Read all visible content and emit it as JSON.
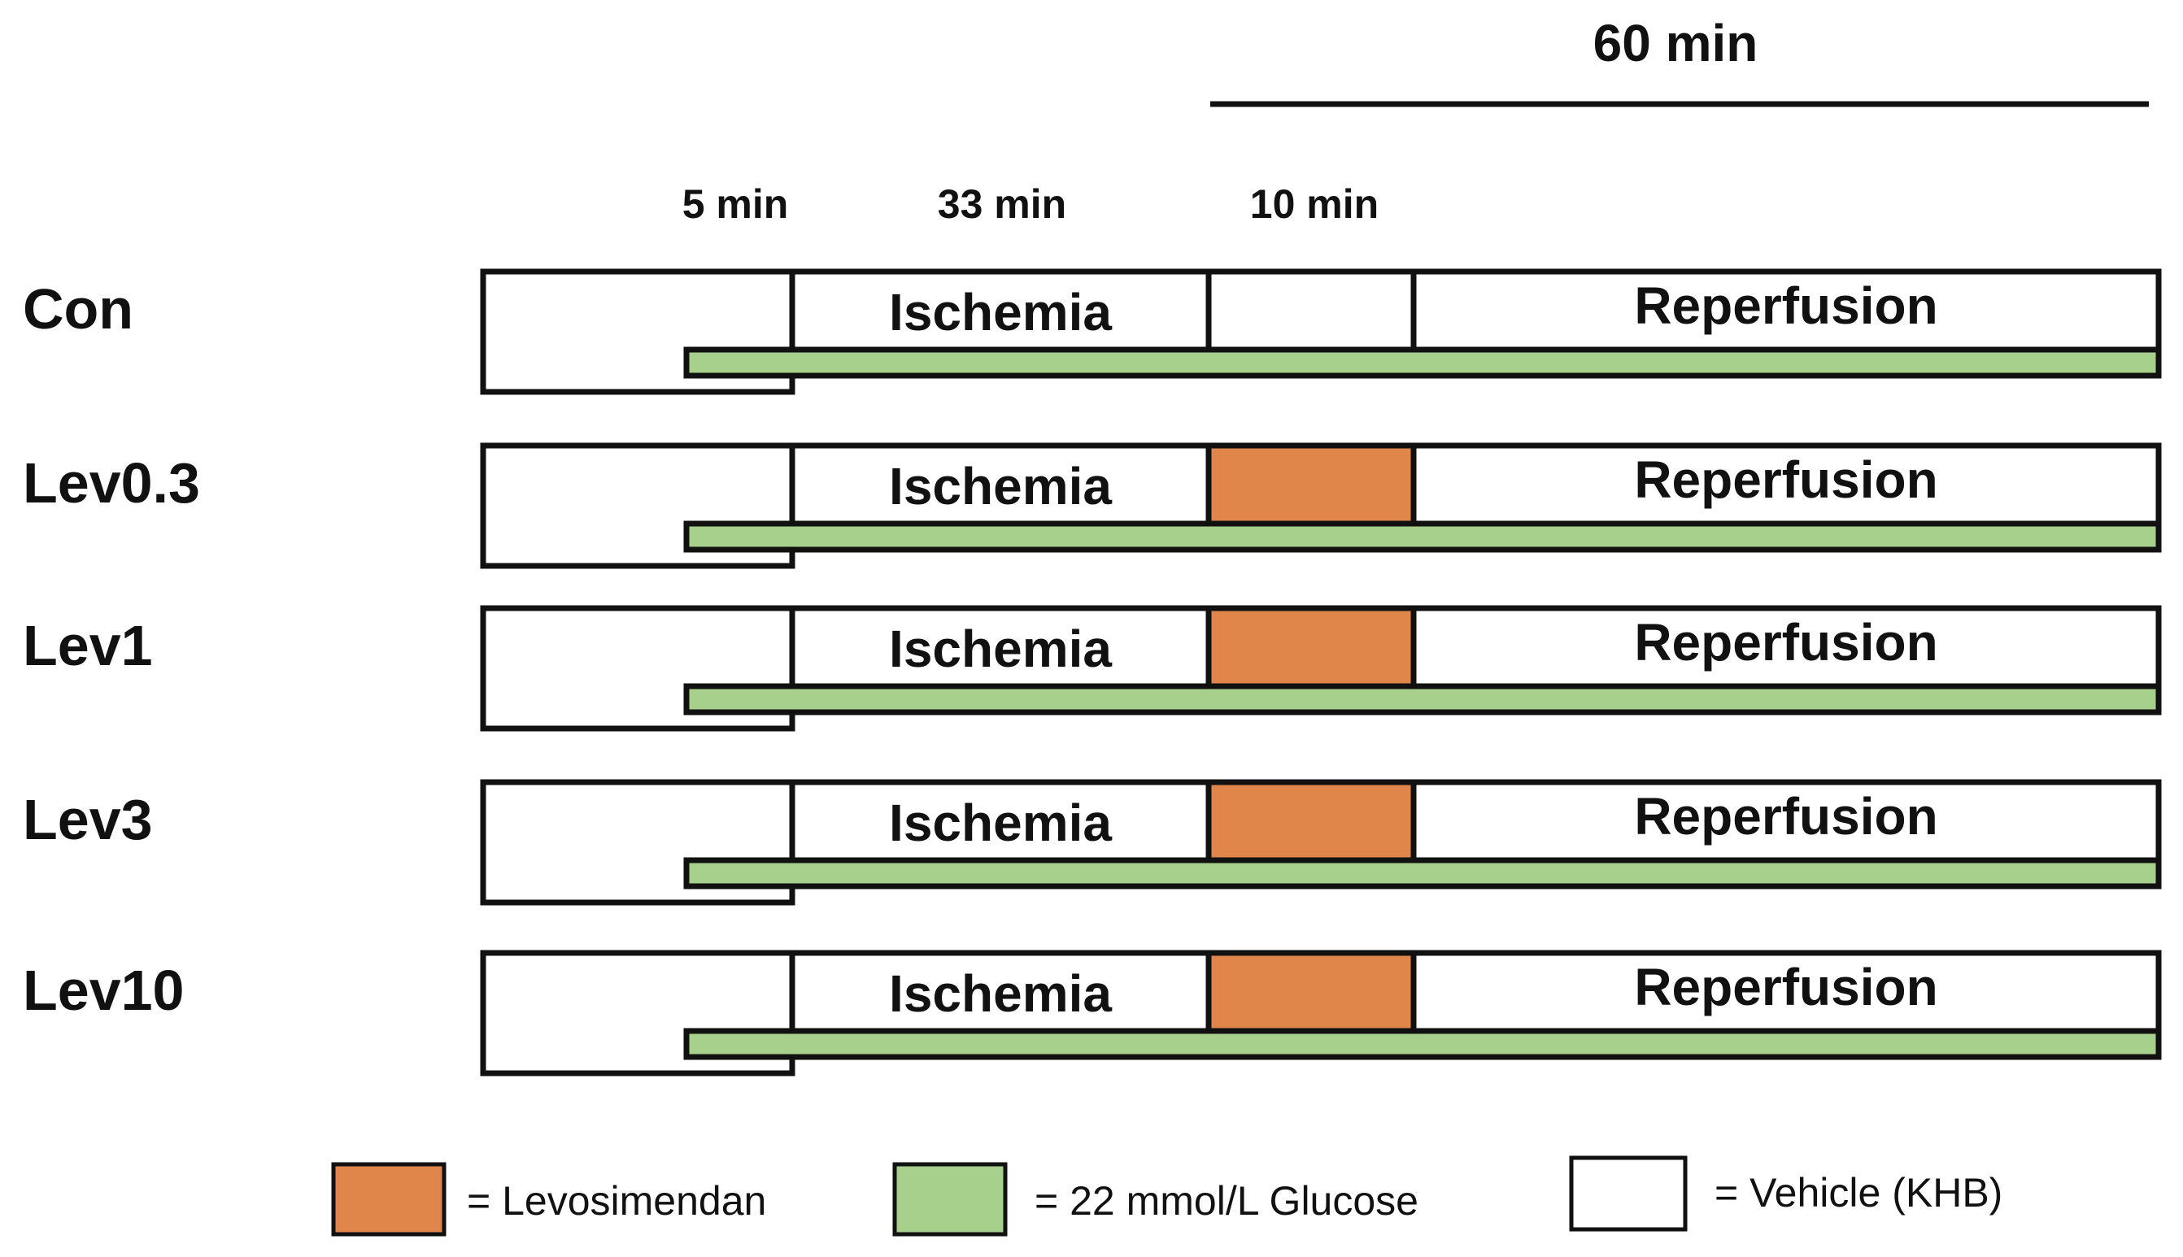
{
  "header": {
    "duration_label": "60 min"
  },
  "phase_labels": {
    "pre": "5 min",
    "ischemia": "33 min",
    "treatment": "10 min"
  },
  "groups": [
    {
      "name": "Con",
      "ischemia_label": "Ischemia",
      "reperfusion_label": "Reperfusion",
      "levosimendan": false
    },
    {
      "name": "Lev0.3",
      "ischemia_label": "Ischemia",
      "reperfusion_label": "Reperfusion",
      "levosimendan": true
    },
    {
      "name": "Lev1",
      "ischemia_label": "Ischemia",
      "reperfusion_label": "Reperfusion",
      "levosimendan": true
    },
    {
      "name": "Lev3",
      "ischemia_label": "Ischemia",
      "reperfusion_label": "Reperfusion",
      "levosimendan": true
    },
    {
      "name": "Lev10",
      "ischemia_label": "Ischemia",
      "reperfusion_label": "Reperfusion",
      "levosimendan": true
    }
  ],
  "legend": {
    "levosimendan": "= Levosimendan",
    "glucose": "= 22 mmol/L Glucose",
    "vehicle": "= Vehicle (KHB)"
  },
  "colors": {
    "levosimendan": "#e0864a",
    "glucose": "#a8d08d",
    "vehicle": "#ffffff",
    "stroke": "#111111"
  }
}
